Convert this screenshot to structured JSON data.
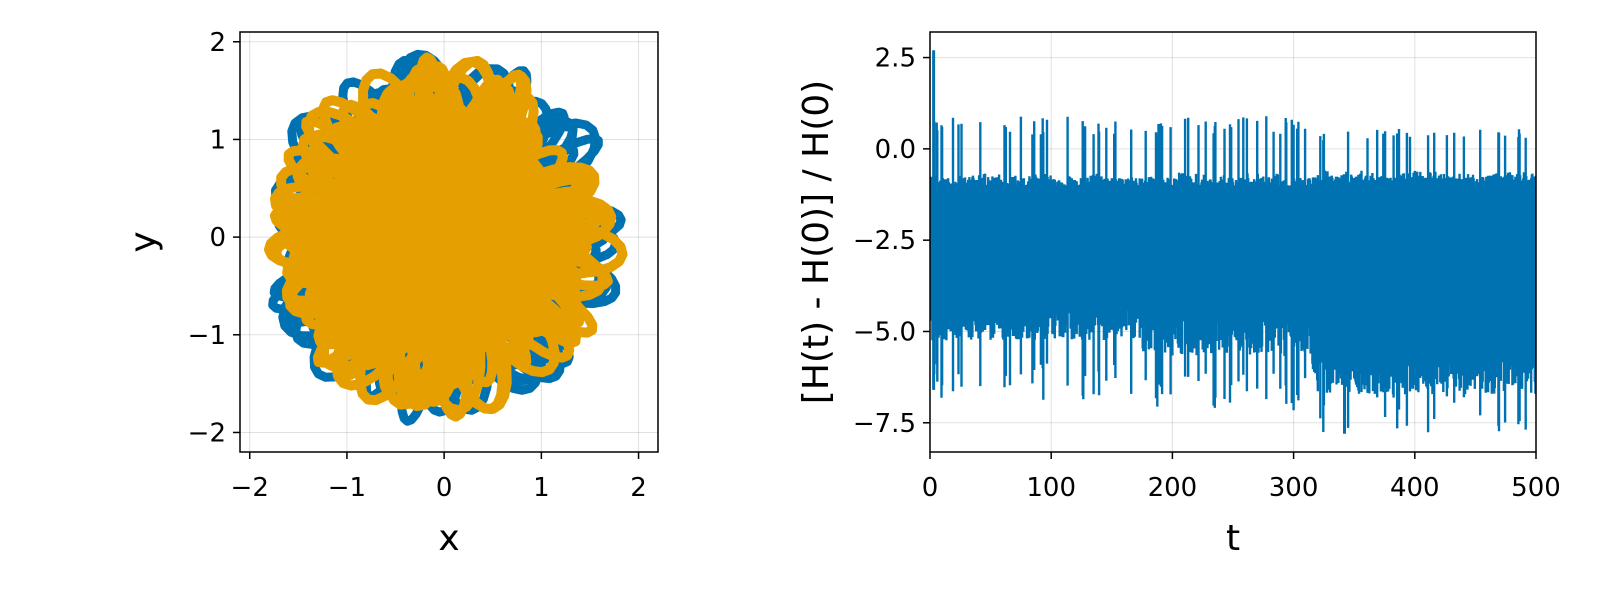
{
  "chart_data": [
    {
      "type": "line",
      "subtype": "trajectory",
      "title": "",
      "xlabel": "x",
      "ylabel": "y",
      "xlim": [
        -2.1,
        2.2
      ],
      "ylim": [
        -2.2,
        2.1
      ],
      "xticks": [
        -2,
        -1,
        0,
        1,
        2
      ],
      "xtick_labels": [
        "−2",
        "−1",
        "0",
        "1",
        "2"
      ],
      "yticks": [
        -2,
        -1,
        0,
        1,
        2
      ],
      "ytick_labels": [
        "−2",
        "−1",
        "0",
        "1",
        "2"
      ],
      "grid": true,
      "aspect": "equal",
      "series": [
        {
          "color": "#0072b2",
          "radius_range": [
            0.3,
            1.95
          ],
          "description_points": [
            [
              2.0,
              0.0
            ],
            [
              0.5,
              -1.95
            ],
            [
              -1.8,
              0.25
            ],
            [
              -1.4,
              1.2
            ],
            [
              1.7,
              0.45
            ]
          ]
        },
        {
          "color": "#e69f00",
          "radius_range": [
            0.0,
            1.85
          ],
          "description_points": [
            [
              1.6,
              0.6
            ],
            [
              0.5,
              1.85
            ],
            [
              -1.75,
              0.7
            ],
            [
              -1.2,
              -1.5
            ],
            [
              0.8,
              -1.4
            ]
          ]
        }
      ]
    },
    {
      "type": "line",
      "title": "",
      "xlabel": "t",
      "ylabel": "[H(t) - H(0)] / H(0)",
      "xlim": [
        0,
        500
      ],
      "ylim": [
        -8.3,
        3.2
      ],
      "xticks": [
        0,
        100,
        200,
        300,
        400,
        500
      ],
      "xtick_labels": [
        "0",
        "100",
        "200",
        "300",
        "400",
        "500"
      ],
      "yticks": [
        -7.5,
        -5.0,
        -2.5,
        0.0,
        2.5
      ],
      "ytick_labels": [
        "−7.5",
        "−5.0",
        "−2.5",
        "0.0",
        "2.5"
      ],
      "grid": true,
      "series": [
        {
          "color": "#0072b2",
          "x_range": [
            0,
            500
          ],
          "baseline_band": [
            -4.0,
            -1.0
          ],
          "max_value": 2.7,
          "max_at_t": 3,
          "min_value": -7.8,
          "min_at_t": 342,
          "segments": [
            {
              "t_range": [
                0,
                175
              ],
              "typical_upper": -0.8,
              "typical_lower": -5.0,
              "spike_upper": 0.9,
              "spike_lower": -6.9
            },
            {
              "t_range": [
                175,
                315
              ],
              "typical_upper": -0.8,
              "typical_lower": -5.4,
              "spike_upper": 0.9,
              "spike_lower": -7.2
            },
            {
              "t_range": [
                315,
                500
              ],
              "typical_upper": -0.7,
              "typical_lower": -6.4,
              "spike_upper": 0.6,
              "spike_lower": -7.8
            }
          ]
        }
      ]
    }
  ]
}
